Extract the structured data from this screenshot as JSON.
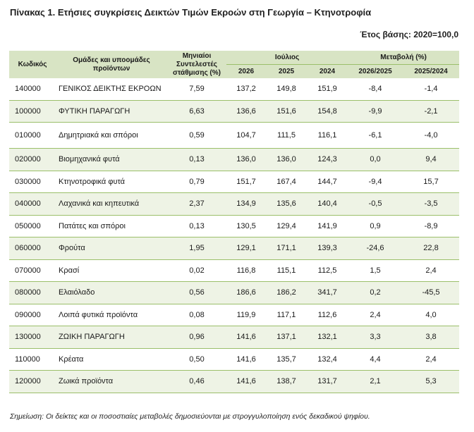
{
  "title": "Πίνακας 1. Ετήσιες συγκρίσεις Δεικτών Τιμών Εκροών στη Γεωργία – Κτηνοτροφία",
  "base_year": "Έτος βάσης: 2020=100,0",
  "header": {
    "code": "Κωδικός",
    "groups": "Ομάδες και υποομάδες προϊόντων",
    "weights": "Μηνιαίοι Συντελεστές στάθμισης (%)",
    "july": "Ιούλιος",
    "change": "Μεταβολή (%)",
    "y2026": "2026",
    "y2025": "2025",
    "y2024": "2024",
    "ch1": "2026/2025",
    "ch2": "2025/2024"
  },
  "rows": [
    {
      "code": "140000",
      "name": "ΓΕΝΙΚΟΣ ΔΕΙΚΤΗΣ ΕΚΡΟΩΝ",
      "weight": "7,59",
      "v2026": "137,2",
      "v2025": "149,8",
      "v2024": "151,9",
      "ch1": "-8,4",
      "ch2": "-1,4"
    },
    {
      "code": "100000",
      "name": "ΦΥΤΙΚΗ ΠΑΡΑΓΩΓΗ",
      "weight": "6,63",
      "v2026": "136,6",
      "v2025": "151,6",
      "v2024": "154,8",
      "ch1": "-9,9",
      "ch2": "-2,1"
    },
    {
      "code": "010000",
      "name": "Δημητριακά και σπόροι",
      "weight": "0,59",
      "v2026": "104,7",
      "v2025": "111,5",
      "v2024": "116,1",
      "ch1": "-6,1",
      "ch2": "-4,0"
    },
    {
      "code": "020000",
      "name": "Βιομηχανικά φυτά",
      "weight": "0,13",
      "v2026": "136,0",
      "v2025": "136,0",
      "v2024": "124,3",
      "ch1": "0,0",
      "ch2": "9,4"
    },
    {
      "code": "030000",
      "name": "Κτηνοτροφικά φυτά",
      "weight": "0,79",
      "v2026": "151,7",
      "v2025": "167,4",
      "v2024": "144,7",
      "ch1": "-9,4",
      "ch2": "15,7"
    },
    {
      "code": "040000",
      "name": "Λαχανικά και κηπευτικά",
      "weight": "2,37",
      "v2026": "134,9",
      "v2025": "135,6",
      "v2024": "140,4",
      "ch1": "-0,5",
      "ch2": "-3,5"
    },
    {
      "code": "050000",
      "name": "Πατάτες και σπόροι",
      "weight": "0,13",
      "v2026": "130,5",
      "v2025": "129,4",
      "v2024": "141,9",
      "ch1": "0,9",
      "ch2": "-8,9"
    },
    {
      "code": "060000",
      "name": "Φρούτα",
      "weight": "1,95",
      "v2026": "129,1",
      "v2025": "171,1",
      "v2024": "139,3",
      "ch1": "-24,6",
      "ch2": "22,8"
    },
    {
      "code": "070000",
      "name": "Κρασί",
      "weight": "0,02",
      "v2026": "116,8",
      "v2025": "115,1",
      "v2024": "112,5",
      "ch1": "1,5",
      "ch2": "2,4"
    },
    {
      "code": "080000",
      "name": "Ελαιόλαδο",
      "weight": "0,56",
      "v2026": "186,6",
      "v2025": "186,2",
      "v2024": "341,7",
      "ch1": "0,2",
      "ch2": "-45,5"
    },
    {
      "code": "090000",
      "name": "Λοιπά φυτικά προϊόντα",
      "weight": "0,08",
      "v2026": "119,9",
      "v2025": "117,1",
      "v2024": "112,6",
      "ch1": "2,4",
      "ch2": "4,0"
    },
    {
      "code": "130000",
      "name": "ΖΩΙΚΗ ΠΑΡΑΓΩΓΗ",
      "weight": "0,96",
      "v2026": "141,6",
      "v2025": "137,1",
      "v2024": "132,1",
      "ch1": "3,3",
      "ch2": "3,8"
    },
    {
      "code": "110000",
      "name": "Κρέατα",
      "weight": "0,50",
      "v2026": "141,6",
      "v2025": "135,7",
      "v2024": "132,4",
      "ch1": "4,4",
      "ch2": "2,4"
    },
    {
      "code": "120000",
      "name": "Ζωικά προϊόντα",
      "weight": "0,46",
      "v2026": "141,6",
      "v2025": "138,7",
      "v2024": "131,7",
      "ch1": "2,1",
      "ch2": "5,3"
    }
  ],
  "note": "Σημείωση: Οι δείκτες και οι ποσοστιαίες μεταβολές δημοσιεύονται με στρογγυλοποίηση ενός δεκαδικού ψηφίου."
}
